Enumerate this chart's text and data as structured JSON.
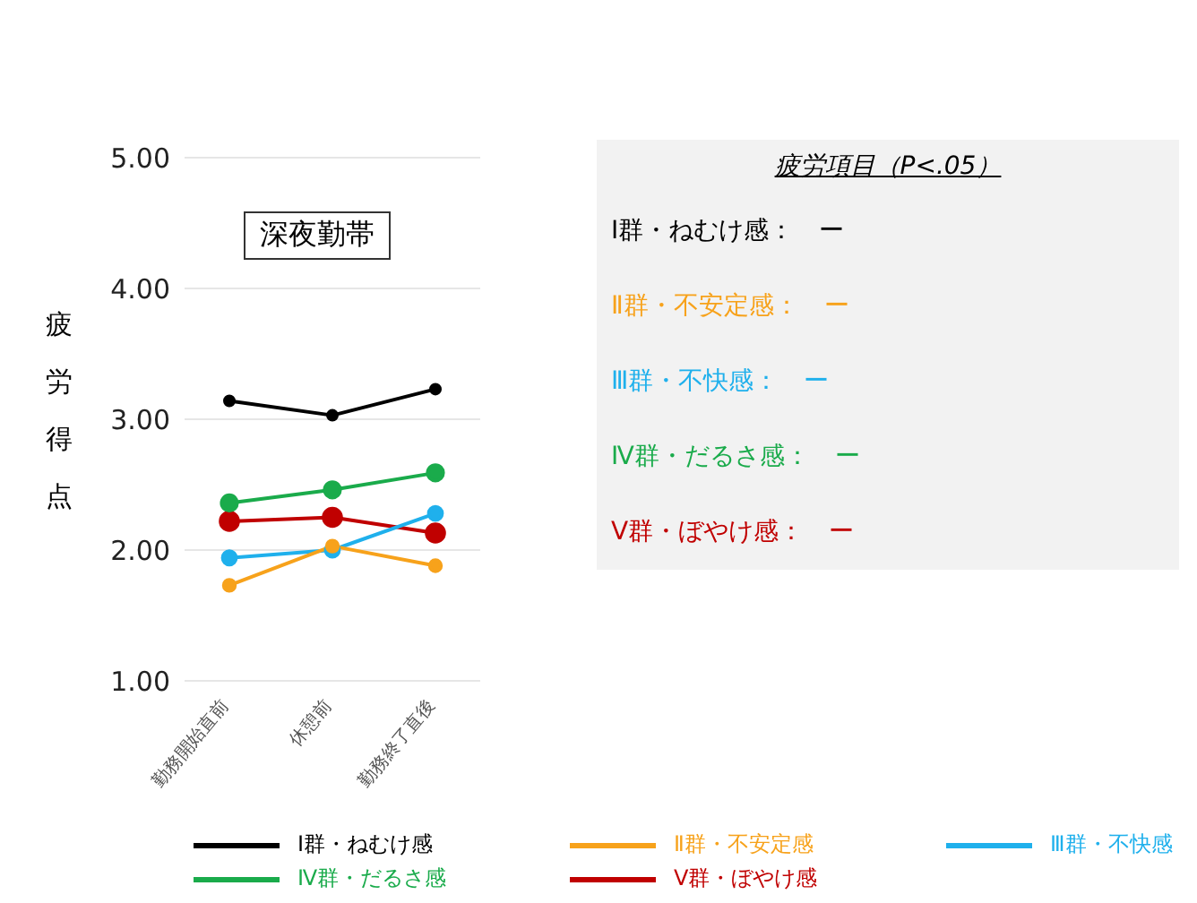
{
  "chart_data": {
    "type": "line",
    "ylabel": "疲労得点",
    "categories": [
      "勤務開始直前",
      "休憩前",
      "勤務終了直後"
    ],
    "series": [
      {
        "name": "Ⅰ群・ねむけ感",
        "color": "#000000",
        "values": [
          3.14,
          3.03,
          3.23
        ]
      },
      {
        "name": "Ⅱ群・不安定感",
        "color": "#f7a21b",
        "values": [
          1.73,
          2.03,
          1.88
        ]
      },
      {
        "name": "Ⅲ群・不快感",
        "color": "#1fb0ec",
        "values": [
          1.94,
          2.0,
          2.28
        ]
      },
      {
        "name": "Ⅳ群・だるさ感",
        "color": "#1aab4b",
        "values": [
          2.36,
          2.46,
          2.59
        ]
      },
      {
        "name": "Ⅴ群・ぼやけ感",
        "color": "#c00000",
        "values": [
          2.22,
          2.25,
          2.13
        ]
      }
    ],
    "ylim": [
      1,
      5
    ],
    "yticks": [
      {
        "value": 1,
        "label": "1.00"
      },
      {
        "value": 2,
        "label": "2.00"
      },
      {
        "value": 3,
        "label": "3.00"
      },
      {
        "value": 4,
        "label": "4.00"
      },
      {
        "value": 5,
        "label": "5.00"
      }
    ],
    "grid": "y",
    "marker": "circle",
    "line_style": "solid",
    "legend": "bottom",
    "annotations": [
      "深夜勤帯",
      "疲労項目（P<.05）",
      "Ⅰ群・ねむけ感：　ー",
      "Ⅱ群・不安定感：　ー",
      "Ⅲ群・不快感：　ー",
      "Ⅳ群・だるさ感：　ー",
      "Ⅴ群・ぼやけ感：　ー"
    ]
  }
}
